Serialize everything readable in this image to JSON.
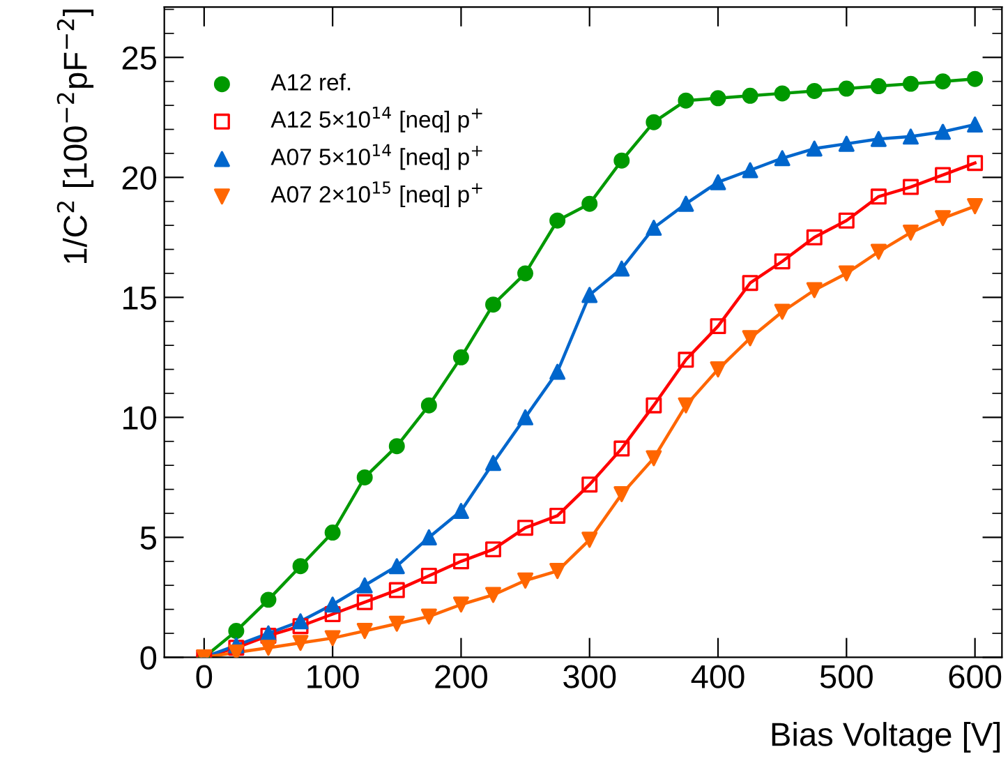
{
  "chart_data": {
    "type": "line",
    "xlabel": "Bias Voltage [V]",
    "ylabel": "1/C$^{2}$ [100$^{−2}$pF$^{−2}$]",
    "x": [
      0,
      25,
      50,
      75,
      100,
      125,
      150,
      175,
      200,
      225,
      250,
      275,
      300,
      325,
      350,
      375,
      400,
      425,
      450,
      475,
      500,
      525,
      550,
      575,
      600
    ],
    "series": [
      {
        "name": "A12 ref.",
        "color": "#009900",
        "marker": "circle",
        "values": [
          0,
          1.1,
          2.4,
          3.8,
          5.2,
          7.5,
          8.8,
          10.5,
          12.5,
          14.7,
          16.0,
          18.2,
          18.9,
          20.7,
          22.3,
          23.2,
          23.3,
          23.4,
          23.5,
          23.6,
          23.7,
          23.8,
          23.9,
          24.0,
          24.1
        ]
      },
      {
        "name": "A12 5×10$^{14}$ [neq] p$^{+}$",
        "color": "#ff0000",
        "marker": "square",
        "values": [
          0,
          0.4,
          0.9,
          1.3,
          1.8,
          2.3,
          2.8,
          3.4,
          4.0,
          4.5,
          5.4,
          5.9,
          7.2,
          8.7,
          10.5,
          12.4,
          13.8,
          15.6,
          16.5,
          17.5,
          18.2,
          19.2,
          19.6,
          20.1,
          20.6
        ]
      },
      {
        "name": "A07 5×10$^{14}$ [neq] p$^{+}$",
        "color": "#0066cc",
        "marker": "triangle",
        "values": [
          0,
          0.5,
          1.0,
          1.5,
          2.2,
          3.0,
          3.8,
          5.0,
          6.1,
          8.1,
          10.0,
          11.9,
          15.1,
          16.2,
          17.9,
          18.9,
          19.8,
          20.3,
          20.8,
          21.2,
          21.4,
          21.6,
          21.7,
          21.9,
          22.2
        ]
      },
      {
        "name": "A07 2×10$^{15}$ [neq] p$^{+}$",
        "color": "#ff6600",
        "marker": "triangle_down",
        "values": [
          0,
          0.2,
          0.4,
          0.6,
          0.8,
          1.1,
          1.4,
          1.7,
          2.2,
          2.6,
          3.2,
          3.6,
          4.9,
          6.8,
          8.3,
          10.5,
          12.0,
          13.3,
          14.4,
          15.3,
          16.0,
          16.9,
          17.7,
          18.3,
          18.8
        ]
      }
    ],
    "xlim": [
      -31,
      621
    ],
    "ylim": [
      0,
      27.1
    ],
    "xticks": [
      0,
      100,
      200,
      300,
      400,
      500,
      600
    ],
    "yticks": [
      0,
      5,
      10,
      15,
      20,
      25
    ],
    "grid": false,
    "legend": "top left",
    "line_style": "solid"
  }
}
